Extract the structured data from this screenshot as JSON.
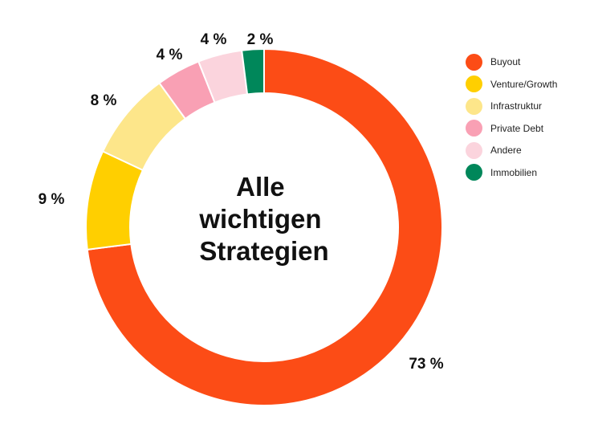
{
  "chart_data": {
    "type": "pie",
    "donut": true,
    "center_title": [
      "Alle",
      "wichtigen",
      "Strategien"
    ],
    "categories": [
      "Buyout",
      "Venture/Growth",
      "Infrastruktur",
      "Private Debt",
      "Andere",
      "Immobilien"
    ],
    "values": [
      73,
      9,
      8,
      4,
      4,
      2
    ],
    "data_labels": [
      "73 %",
      "9 %",
      "8 %",
      "4 %",
      "4 %",
      "2 %"
    ],
    "colors": [
      "#fc4c16",
      "#ffcf00",
      "#fde68a",
      "#f9a0b4",
      "#fbd4dd",
      "#00875a"
    ],
    "legend_position": "top-right"
  }
}
